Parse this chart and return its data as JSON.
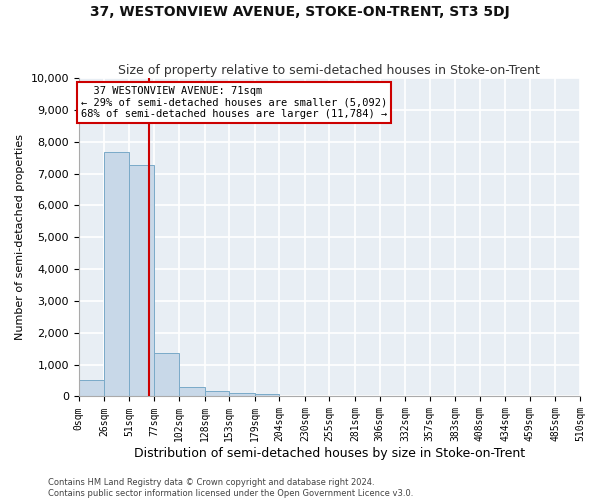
{
  "title": "37, WESTONVIEW AVENUE, STOKE-ON-TRENT, ST3 5DJ",
  "subtitle": "Size of property relative to semi-detached houses in Stoke-on-Trent",
  "xlabel": "Distribution of semi-detached houses by size in Stoke-on-Trent",
  "ylabel": "Number of semi-detached properties",
  "footer_line1": "Contains HM Land Registry data © Crown copyright and database right 2024.",
  "footer_line2": "Contains public sector information licensed under the Open Government Licence v3.0.",
  "annotation_title": "37 WESTONVIEW AVENUE: 71sqm",
  "annotation_line1": "← 29% of semi-detached houses are smaller (5,092)",
  "annotation_line2": "68% of semi-detached houses are larger (11,784) →",
  "property_size": 71,
  "bin_edges": [
    0,
    26,
    51,
    77,
    102,
    128,
    153,
    179,
    204,
    230,
    255,
    281,
    306,
    332,
    357,
    383,
    408,
    434,
    459,
    485,
    510
  ],
  "bar_heights": [
    520,
    7680,
    7280,
    1380,
    310,
    160,
    110,
    80,
    0,
    0,
    0,
    0,
    0,
    0,
    0,
    0,
    0,
    0,
    0,
    0
  ],
  "bar_color": "#c8d8e8",
  "bar_edge_color": "#7aaac8",
  "red_line_x": 71,
  "ylim": [
    0,
    10000
  ],
  "yticks": [
    0,
    1000,
    2000,
    3000,
    4000,
    5000,
    6000,
    7000,
    8000,
    9000,
    10000
  ],
  "bg_color": "#e8eef4",
  "grid_color": "#ffffff",
  "fig_bg_color": "#ffffff",
  "annotation_box_color": "#ffffff",
  "annotation_box_edge": "#cc0000",
  "red_line_color": "#cc0000",
  "title_fontsize": 10,
  "subtitle_fontsize": 9,
  "tick_label_fontsize": 7,
  "ylabel_fontsize": 8,
  "xlabel_fontsize": 9,
  "annotation_fontsize": 7.5,
  "footer_fontsize": 6
}
